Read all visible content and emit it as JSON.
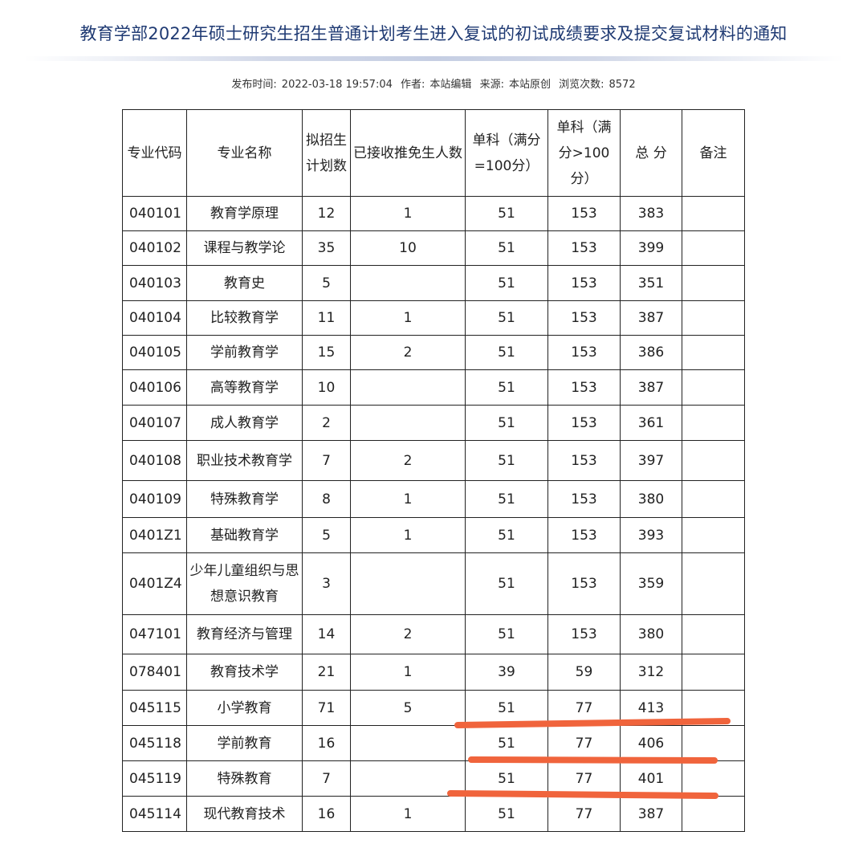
{
  "title": "教育学部2022年硕士研究生招生普通计划考生进入复试的初试成绩要求及提交复试材料的通知",
  "meta": {
    "publish_label": "发布时间:",
    "publish_time": "2022-03-18 19:57:04",
    "author_label": "作者:",
    "author": "本站编辑",
    "source_label": "来源:",
    "source": "本站原创",
    "views_label": "浏览次数:",
    "views": "8572"
  },
  "table": {
    "headers": [
      "专业代码",
      "专业名称",
      "拟招生计划数",
      "已接收推免生人数",
      "单科（满分=100分）",
      "单科（满分>100分）",
      "总 分",
      "备注"
    ],
    "rows": [
      [
        "040101",
        "教育学原理",
        "12",
        "1",
        "51",
        "153",
        "383",
        ""
      ],
      [
        "040102",
        "课程与教学论",
        "35",
        "10",
        "51",
        "153",
        "399",
        ""
      ],
      [
        "040103",
        "教育史",
        "5",
        "",
        "51",
        "153",
        "351",
        ""
      ],
      [
        "040104",
        "比较教育学",
        "11",
        "1",
        "51",
        "153",
        "387",
        ""
      ],
      [
        "040105",
        "学前教育学",
        "15",
        "2",
        "51",
        "153",
        "386",
        ""
      ],
      [
        "040106",
        "高等教育学",
        "10",
        "",
        "51",
        "153",
        "387",
        ""
      ],
      [
        "040107",
        "成人教育学",
        "2",
        "",
        "51",
        "153",
        "361",
        ""
      ],
      [
        "040108",
        "职业技术教育学",
        "7",
        "2",
        "51",
        "153",
        "397",
        ""
      ],
      [
        "040109",
        "特殊教育学",
        "8",
        "1",
        "51",
        "153",
        "380",
        ""
      ],
      [
        "0401Z1",
        "基础教育学",
        "5",
        "1",
        "51",
        "153",
        "393",
        ""
      ],
      [
        "0401Z4",
        "少年儿童组织与思想意识教育",
        "3",
        "",
        "51",
        "153",
        "359",
        ""
      ],
      [
        "047101",
        "教育经济与管理",
        "14",
        "2",
        "51",
        "153",
        "380",
        ""
      ],
      [
        "078401",
        "教育技术学",
        "21",
        "1",
        "39",
        "59",
        "312",
        ""
      ],
      [
        "045115",
        "小学教育",
        "71",
        "5",
        "51",
        "77",
        "413",
        ""
      ],
      [
        "045118",
        "学前教育",
        "16",
        "",
        "51",
        "77",
        "406",
        ""
      ],
      [
        "045119",
        "特殊教育",
        "7",
        "",
        "51",
        "77",
        "401",
        ""
      ],
      [
        "045114",
        "现代教育技术",
        "16",
        "1",
        "51",
        "77",
        "387",
        ""
      ]
    ]
  },
  "annotation_color": "#f0643c"
}
